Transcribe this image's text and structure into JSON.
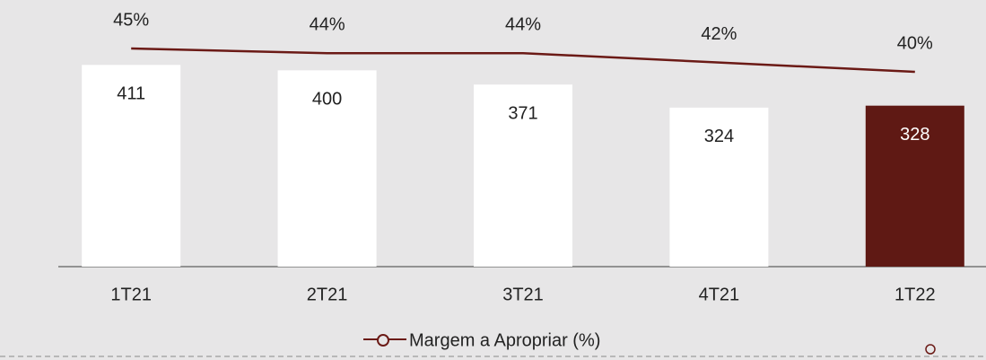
{
  "chart_data": {
    "type": "bar",
    "categories": [
      "1T21",
      "2T21",
      "3T21",
      "4T21",
      "1T22"
    ],
    "ylim": [
      0,
      450
    ],
    "y2lim": [
      30,
      50
    ],
    "series": [
      {
        "type": "bar",
        "values": [
          411,
          400,
          371,
          324,
          328
        ],
        "colors": [
          "#ffffff",
          "#ffffff",
          "#ffffff",
          "#ffffff",
          "#5f1914"
        ]
      },
      {
        "type": "line",
        "axis": "y2",
        "name": "Margem a Apropriar (%)",
        "color": "#6b1a16",
        "values": [
          45,
          44,
          44,
          42,
          40
        ],
        "value_labels": [
          "45%",
          "44%",
          "44%",
          "42%",
          "40%"
        ]
      }
    ]
  }
}
